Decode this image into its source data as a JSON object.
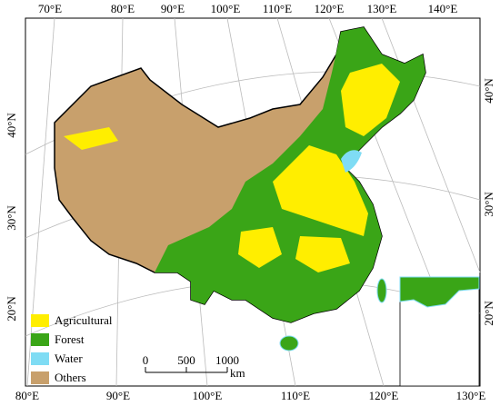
{
  "top_labels": [
    "70°E",
    "80°E",
    "90°E",
    "100°E",
    "110°E",
    "120°E",
    "130°E",
    "140°E"
  ],
  "bottom_labels": [
    "80°E",
    "90°E",
    "100°E",
    "110°E",
    "120°E",
    "130°E"
  ],
  "left_labels": [
    "40°N",
    "30°N",
    "20°N"
  ],
  "right_labels": [
    "40°N",
    "30°N",
    "20°N"
  ],
  "legend": [
    {
      "label": "Agricultural",
      "color": "#ffee00"
    },
    {
      "label": "Forest",
      "color": "#3aa517"
    },
    {
      "label": "Water",
      "color": "#7fdcf4"
    },
    {
      "label": "Others",
      "color": "#c8a06c"
    }
  ],
  "scale_bar": {
    "ticks": [
      "0",
      "500",
      "1000"
    ],
    "unit": "km"
  }
}
